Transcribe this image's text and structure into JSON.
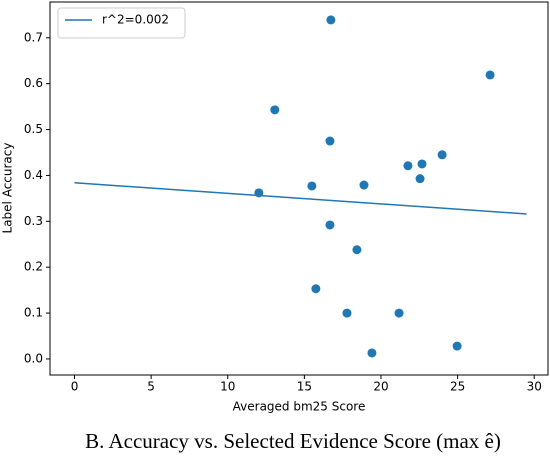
{
  "chart_data": {
    "type": "scatter",
    "xlabel": "Averaged bm25 Score",
    "ylabel": "Label Accuracy",
    "xlim": [
      -1.6,
      30.9
    ],
    "ylim": [
      -0.035,
      0.778
    ],
    "xticks": [
      0,
      5,
      10,
      15,
      20,
      25,
      30
    ],
    "yticks": [
      {
        "value": 0,
        "label": "0.0"
      },
      0.1,
      0.2,
      0.3,
      0.4,
      0.5,
      0.6,
      0.7
    ],
    "legend": "upper left",
    "series": [
      {
        "name": "r^2=0.002",
        "type": "line",
        "color": "#1f77b4",
        "x": [
          0,
          29.5
        ],
        "values": [
          0.384,
          0.316
        ]
      },
      {
        "type": "scatter",
        "color": "#1f77b4",
        "x": [
          16.73,
          27.12,
          13.07,
          16.67,
          23.99,
          22.68,
          21.76,
          22.55,
          18.89,
          15.49,
          12.03,
          16.67,
          18.43,
          15.75,
          17.78,
          21.18,
          24.97,
          19.41
        ],
        "values": [
          0.739,
          0.619,
          0.543,
          0.475,
          0.445,
          0.425,
          0.421,
          0.393,
          0.379,
          0.377,
          0.362,
          0.292,
          0.238,
          0.153,
          0.1,
          0.1,
          0.028,
          0.013
        ]
      }
    ]
  },
  "caption": "B. Accuracy vs. Selected Evidence Score (max ê)"
}
